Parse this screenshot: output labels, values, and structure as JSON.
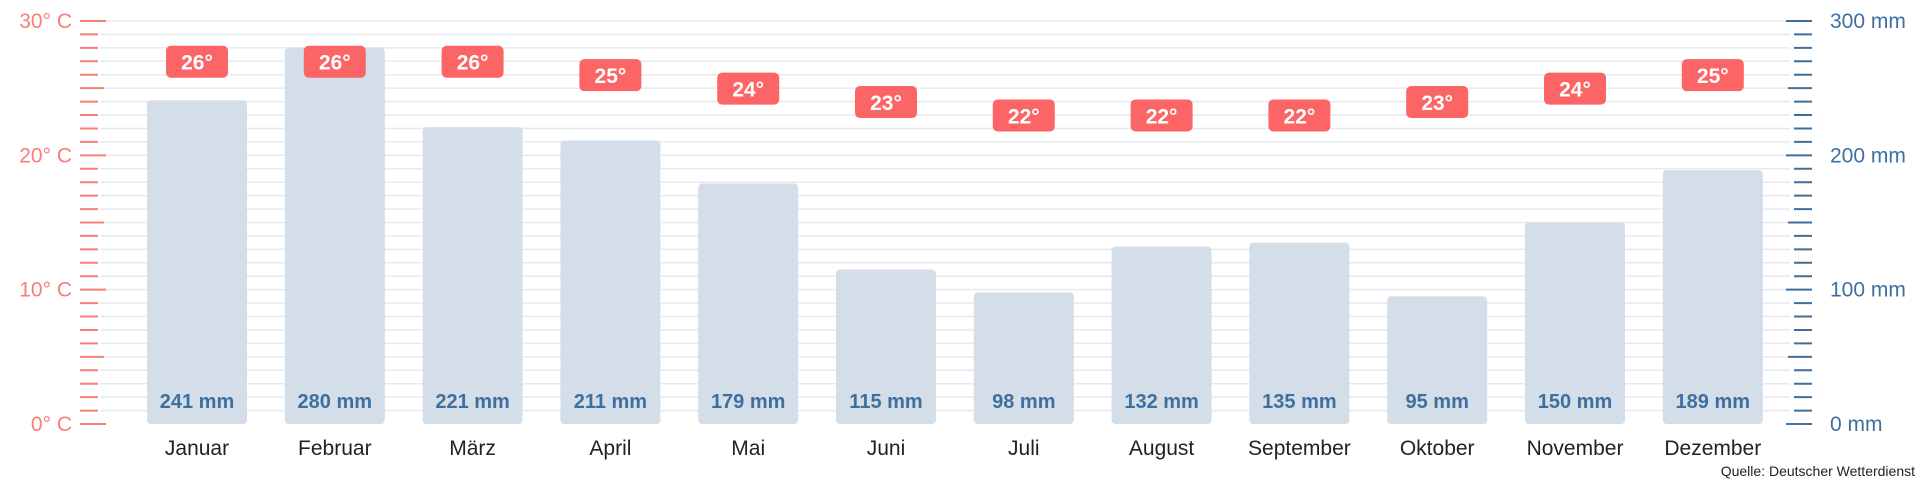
{
  "chart_data": {
    "type": "bar",
    "categories": [
      "Januar",
      "Februar",
      "März",
      "April",
      "Mai",
      "Juni",
      "Juli",
      "August",
      "September",
      "Oktober",
      "November",
      "Dezember"
    ],
    "series": [
      {
        "values": [
          241,
          280,
          221,
          211,
          179,
          115,
          98,
          132,
          135,
          95,
          150,
          189
        ],
        "labels": [
          "241 mm",
          "280 mm",
          "221 mm",
          "211 mm",
          "179 mm",
          "115 mm",
          "98 mm",
          "132 mm",
          "135 mm",
          "95 mm",
          "150 mm",
          "189 mm"
        ],
        "axis": "right",
        "color": "#d4dee8"
      },
      {
        "values": [
          26,
          26,
          26,
          25,
          24,
          23,
          22,
          22,
          22,
          23,
          24,
          25
        ],
        "labels": [
          "26°",
          "26°",
          "26°",
          "25°",
          "24°",
          "23°",
          "22°",
          "22°",
          "22°",
          "23°",
          "24°",
          "25°"
        ],
        "axis": "left",
        "color": "#fb6565"
      }
    ],
    "left_axis": {
      "ylim": [
        0,
        30
      ],
      "ticks": [
        0,
        10,
        20,
        30
      ],
      "tick_labels": [
        "0° C",
        "10° C",
        "20° C",
        "30° C"
      ],
      "color": "#f77e79"
    },
    "right_axis": {
      "ylim": [
        0,
        300
      ],
      "ticks": [
        0,
        100,
        200,
        300
      ],
      "tick_labels": [
        "0 mm",
        "100 mm",
        "200 mm",
        "300 mm"
      ],
      "color": "#3f6f9e"
    },
    "grid": true,
    "legend": "none"
  },
  "source": "Quelle: Deutscher Wetterdienst"
}
